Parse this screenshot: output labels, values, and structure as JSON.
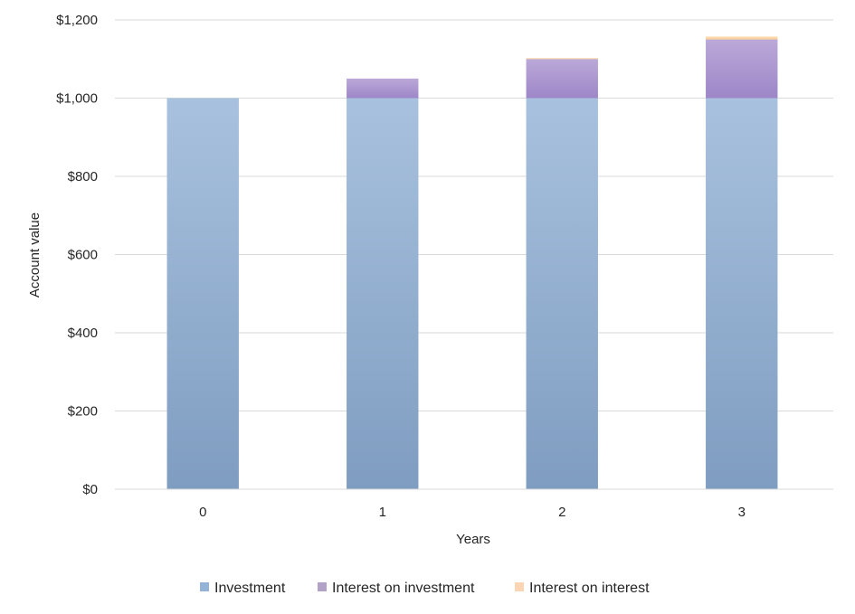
{
  "chart_data": {
    "type": "bar",
    "stacked": true,
    "categories": [
      "0",
      "1",
      "2",
      "3"
    ],
    "series": [
      {
        "name": "Investment",
        "values": [
          1000,
          1000,
          1000,
          1000
        ],
        "color": "#95b3d7"
      },
      {
        "name": "Interest on investment",
        "values": [
          0,
          50,
          100,
          150
        ],
        "color": "#b3a2c7"
      },
      {
        "name": "Interest on interest",
        "values": [
          0,
          0,
          2.5,
          7.625
        ],
        "color": "#fcd5b5"
      }
    ],
    "xlabel": "Years",
    "ylabel": "Account value",
    "ylim": [
      0,
      1200
    ],
    "yticks": [
      0,
      200,
      400,
      600,
      800,
      1000,
      1200
    ],
    "ytick_labels": [
      "$0",
      "$200",
      "$400",
      "$600",
      "$800",
      "$1,000",
      "$1,200"
    ],
    "grid": true,
    "legend_position": "bottom"
  }
}
